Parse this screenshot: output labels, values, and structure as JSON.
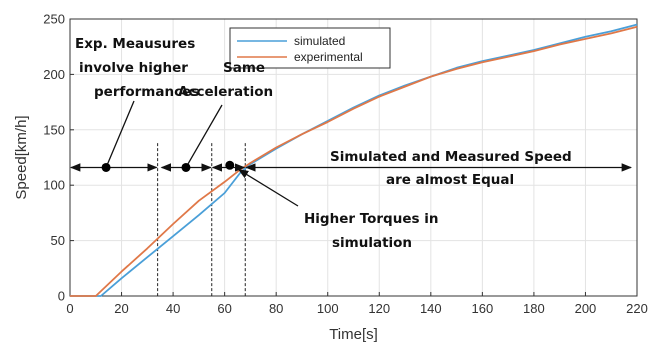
{
  "chart_data": {
    "type": "line",
    "xlabel": "Time[s]",
    "ylabel": "Speed[km/h]",
    "xlim": [
      0,
      220
    ],
    "ylim": [
      0,
      250
    ],
    "xticks": [
      0,
      20,
      40,
      60,
      80,
      100,
      120,
      140,
      160,
      180,
      200,
      220
    ],
    "yticks": [
      0,
      50,
      100,
      150,
      200,
      250
    ],
    "grid": true,
    "legend_position": "top-center",
    "series": [
      {
        "name": "simulated",
        "color": "#4a9fd8",
        "x": [
          0,
          12,
          20,
          30,
          40,
          50,
          60,
          66,
          70,
          80,
          90,
          100,
          110,
          120,
          130,
          140,
          150,
          160,
          170,
          180,
          190,
          200,
          210,
          220
        ],
        "y": [
          0,
          0,
          16,
          35,
          54,
          73,
          93,
          111,
          119,
          133,
          146,
          158,
          170,
          181,
          190,
          198,
          206,
          212,
          217,
          222,
          228,
          234,
          239,
          245
        ]
      },
      {
        "name": "experimental",
        "color": "#e07848",
        "x": [
          0,
          10,
          20,
          30,
          40,
          50,
          60,
          66,
          70,
          80,
          90,
          100,
          110,
          120,
          130,
          140,
          150,
          160,
          170,
          180,
          190,
          200,
          210,
          220
        ],
        "y": [
          0,
          0,
          22,
          43,
          65,
          86,
          103,
          114,
          120,
          134,
          146,
          157,
          169,
          180,
          189,
          198,
          205,
          211,
          216,
          221,
          227,
          232,
          237,
          243
        ]
      }
    ],
    "vertical_lines_x": [
      34,
      55,
      68
    ],
    "annotations": [
      {
        "id": "exp",
        "lines": [
          "Exp. Meausures",
          "involve higher",
          "performances"
        ],
        "dot": [
          14,
          116
        ]
      },
      {
        "id": "acc",
        "lines": [
          "Same",
          "Acceleration"
        ],
        "dot": [
          45,
          116
        ]
      },
      {
        "id": "torque",
        "lines": [
          "Higher Torques in",
          "simulation"
        ],
        "dot": [
          62,
          118
        ]
      },
      {
        "id": "equal",
        "lines": [
          "Simulated and Measured Speed",
          "are almost Equal"
        ]
      }
    ]
  }
}
